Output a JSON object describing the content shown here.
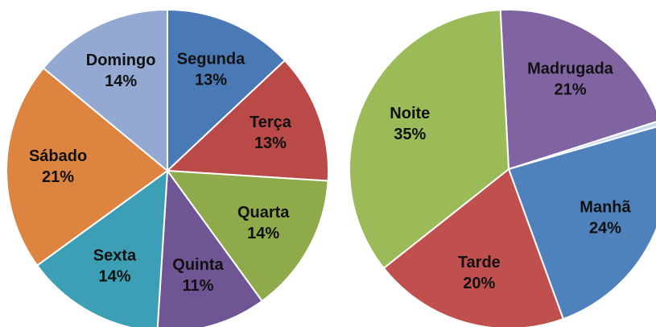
{
  "chart_data": [
    {
      "type": "pie",
      "categories": [
        "Segunda",
        "Terça",
        "Quarta",
        "Quinta",
        "Sexta",
        "Sábado",
        "Domingo"
      ],
      "values": [
        13,
        13,
        14,
        11,
        14,
        21,
        14
      ],
      "value_labels": [
        "13%",
        "13%",
        "14%",
        "11%",
        "14%",
        "21%",
        "14%"
      ],
      "colors": [
        "#4a7ab5",
        "#b94a48",
        "#8faa4a",
        "#6f5594",
        "#3d9fb5",
        "#dd8540",
        "#93a9d2"
      ]
    },
    {
      "type": "pie",
      "categories": [
        "Madrugada",
        null,
        "Manhã",
        "Tarde",
        "Noite"
      ],
      "values": [
        21,
        0.5,
        24,
        20,
        35
      ],
      "value_labels": [
        "21%",
        null,
        "24%",
        "20%",
        "35%"
      ],
      "colors": [
        "#8064a2",
        "#c6d9f1",
        "#4f81bd",
        "#c0504d",
        "#9bbb59"
      ]
    }
  ]
}
